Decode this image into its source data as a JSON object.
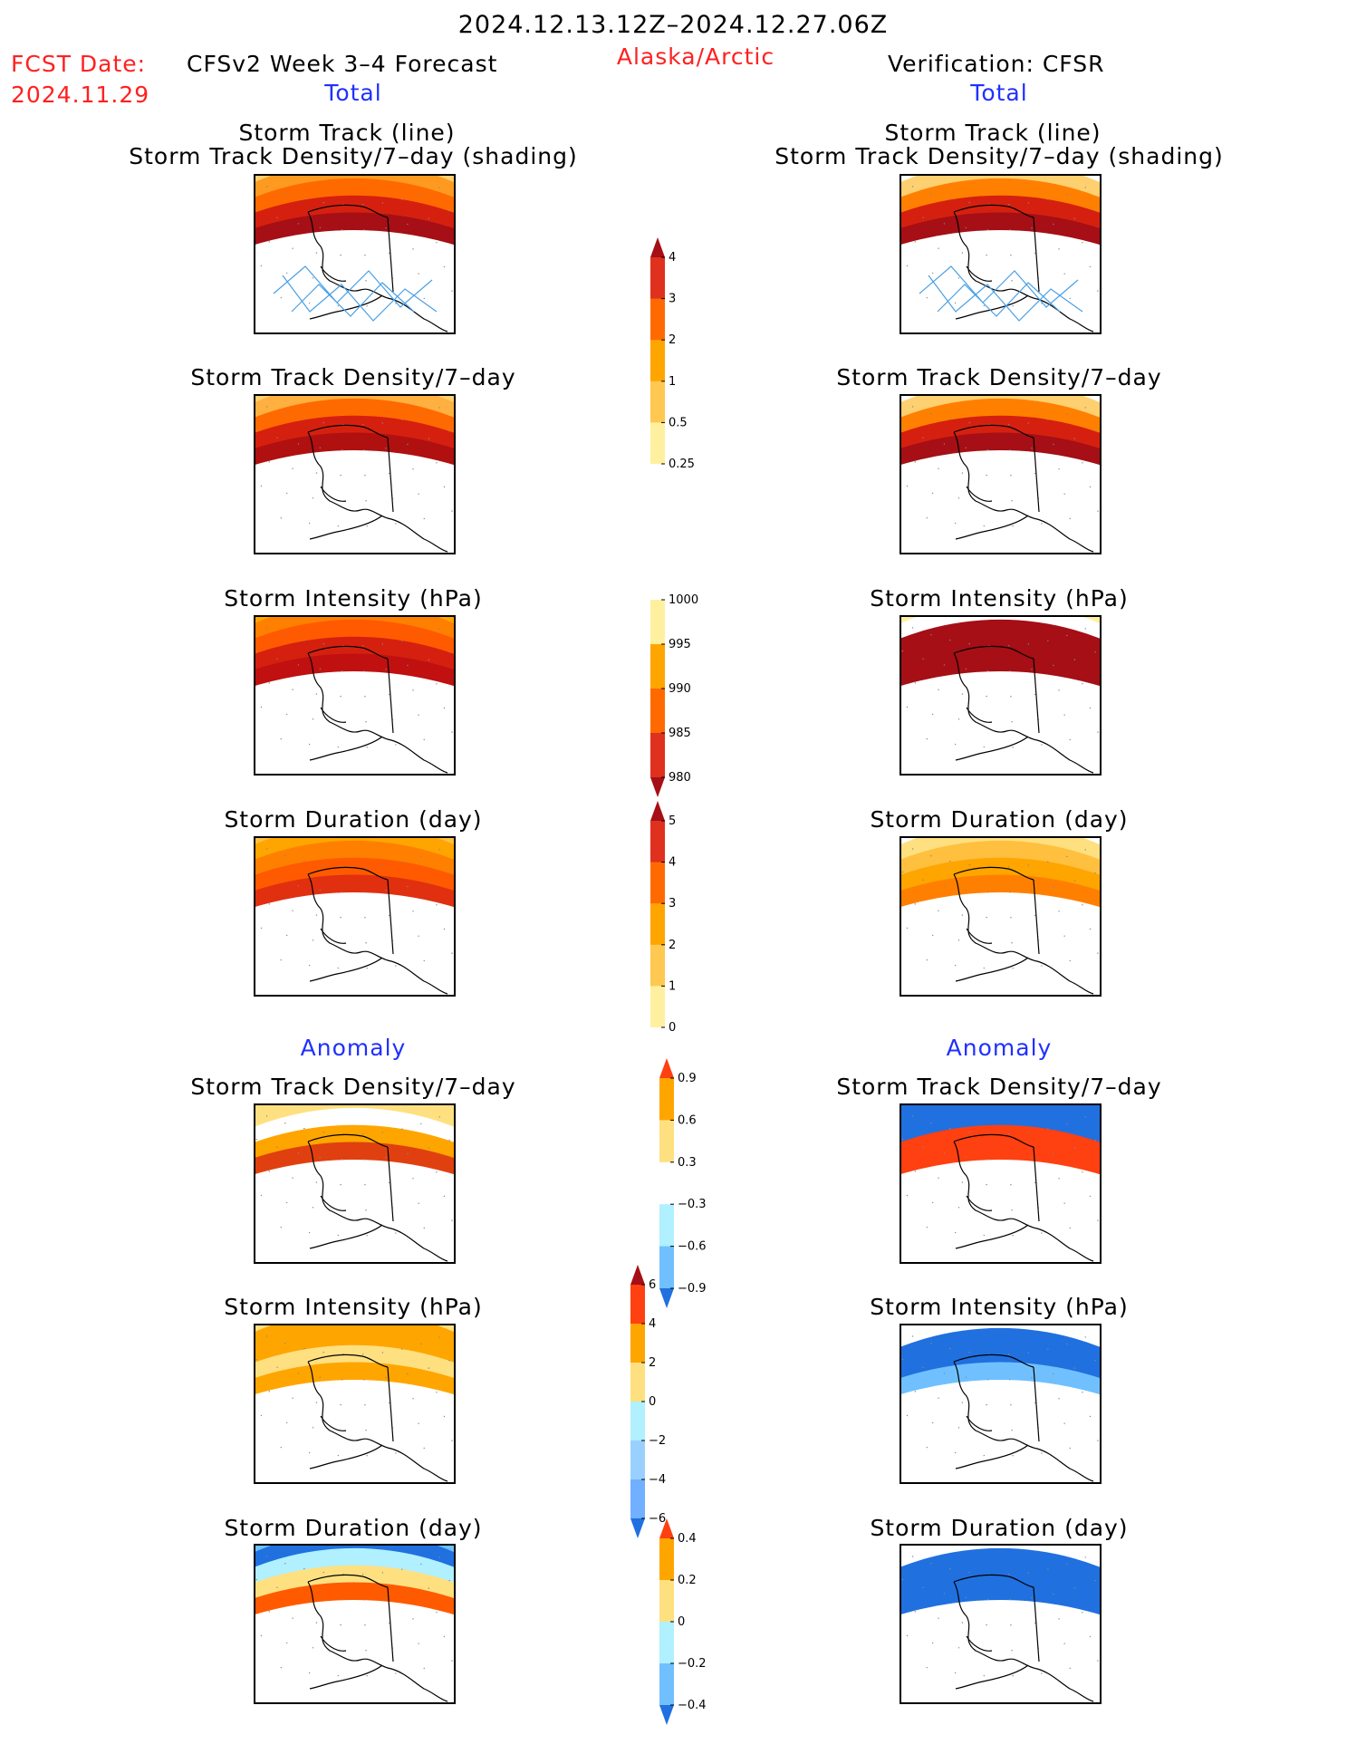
{
  "header": {
    "period": "2024.12.13.12Z–2024.12.27.06Z",
    "fcst_label": "FCST Date:",
    "fcst_date": "2024.11.29",
    "forecast_title": "CFSv2 Week 3–4 Forecast",
    "region": "Alaska/Arctic",
    "verification_title": "Verification: CFSR",
    "total_label": "Total",
    "anomaly_label": "Anomaly"
  },
  "panel_titles": {
    "track_line": "Storm Track (line)",
    "track_shading": "Storm Track Density/7–day (shading)",
    "density": "Storm Track Density/7–day",
    "intensity": "Storm Intensity (hPa)",
    "duration": "Storm Duration (day)"
  },
  "colorbars": {
    "density": {
      "ticks": [
        "4",
        "3",
        "2",
        "1",
        "0.5",
        "0.25"
      ],
      "colors": [
        "#a50f15",
        "#e0301e",
        "#ff6a00",
        "#ffa500",
        "#ffc850",
        "#fff0a0",
        "#ffffff"
      ]
    },
    "intensity": {
      "ticks": [
        "1000",
        "995",
        "990",
        "985",
        "980"
      ],
      "colors": [
        "#ffffff",
        "#fff0a0",
        "#ffa500",
        "#ff6a00",
        "#e0301e",
        "#a50f15"
      ]
    },
    "duration": {
      "ticks": [
        "5",
        "4",
        "3",
        "2",
        "1",
        "0"
      ],
      "colors": [
        "#a50f15",
        "#e0301e",
        "#ff6a00",
        "#ffa500",
        "#ffc850",
        "#fff0a0",
        "#ffffff"
      ]
    },
    "anom_density": {
      "ticks": [
        "0.9",
        "0.6",
        "0.3",
        "−0.3",
        "−0.6",
        "−0.9"
      ],
      "colors": [
        "#ff4010",
        "#ffa500",
        "#ffe080",
        "#ffffff",
        "#b0f0ff",
        "#70c0ff",
        "#2070e0"
      ]
    },
    "anom_intensity": {
      "ticks": [
        "6",
        "4",
        "2",
        "0",
        "−2",
        "−4",
        "−6"
      ],
      "colors": [
        "#a50f15",
        "#ff4010",
        "#ffa500",
        "#ffe080",
        "#b0f0ff",
        "#9ad0ff",
        "#70b0ff",
        "#2070e0"
      ]
    },
    "anom_duration": {
      "ticks": [
        "0.4",
        "0.2",
        "0",
        "−0.2",
        "−0.4"
      ],
      "colors": [
        "#ff4010",
        "#ffa500",
        "#ffe080",
        "#b0f0ff",
        "#70c0ff",
        "#2070e0"
      ]
    }
  },
  "panels": {
    "fc_track": {
      "colors": [
        "#fff8b0",
        "#ffd070",
        "#ff9a20",
        "#ff6a00",
        "#d52010",
        "#a50f15"
      ],
      "storm_lines": true
    },
    "fc_density": {
      "colors": [
        "#fff8b0",
        "#ffd070",
        "#ffb040",
        "#ff6a00",
        "#d52010",
        "#b01010"
      ]
    },
    "fc_intensity": {
      "colors": [
        "#fff0a0",
        "#ffa500",
        "#ff8000",
        "#ff5a00",
        "#d52010",
        "#c01010"
      ]
    },
    "fc_duration": {
      "colors": [
        "#ffd060",
        "#ffc040",
        "#ffa500",
        "#ff8000",
        "#ff5a00",
        "#e03010"
      ]
    },
    "fc_anom_density": {
      "colors": [
        "#ffffff",
        "#ffe080",
        "#ffe080",
        "#ffffff",
        "#ffa500",
        "#e04010"
      ]
    },
    "fc_anom_intensity": {
      "colors": [
        "#b0f0ff",
        "#ffe080",
        "#ffa500",
        "#ffa500",
        "#ffe080",
        "#ffa500"
      ]
    },
    "fc_anom_duration": {
      "colors": [
        "#2070e0",
        "#70c0ff",
        "#2070e0",
        "#b0f0ff",
        "#ffe080",
        "#ff5a00"
      ]
    },
    "cfsr_track": {
      "colors": [
        "#ffffff",
        "#ffffff",
        "#ffd070",
        "#ff8000",
        "#d52010",
        "#a50f15"
      ],
      "storm_lines": true
    },
    "cfsr_density": {
      "colors": [
        "#ffffff",
        "#ffffff",
        "#ffd070",
        "#ff8000",
        "#d52010",
        "#a50f15"
      ]
    },
    "cfsr_intensity": {
      "colors": [
        "#ffffff",
        "#fff0a0",
        "#ffffff",
        "#a50f15",
        "#a50f15",
        "#a50f15"
      ]
    },
    "cfsr_duration": {
      "colors": [
        "#ffffff",
        "#ffffff",
        "#ffe080",
        "#ffc040",
        "#ffa500",
        "#ff8000"
      ]
    },
    "cfsr_anom_density": {
      "colors": [
        "#b0f0ff",
        "#2070e0",
        "#2070e0",
        "#2070e0",
        "#ff4010",
        "#ff4010"
      ]
    },
    "cfsr_anom_intensity": {
      "colors": [
        "#ffffff",
        "#ffffff",
        "#ffffff",
        "#2070e0",
        "#2070e0",
        "#70c0ff"
      ]
    },
    "cfsr_anom_duration": {
      "colors": [
        "#ffffff",
        "#ffffff",
        "#ffffff",
        "#2070e0",
        "#2070e0",
        "#2070e0"
      ]
    }
  }
}
